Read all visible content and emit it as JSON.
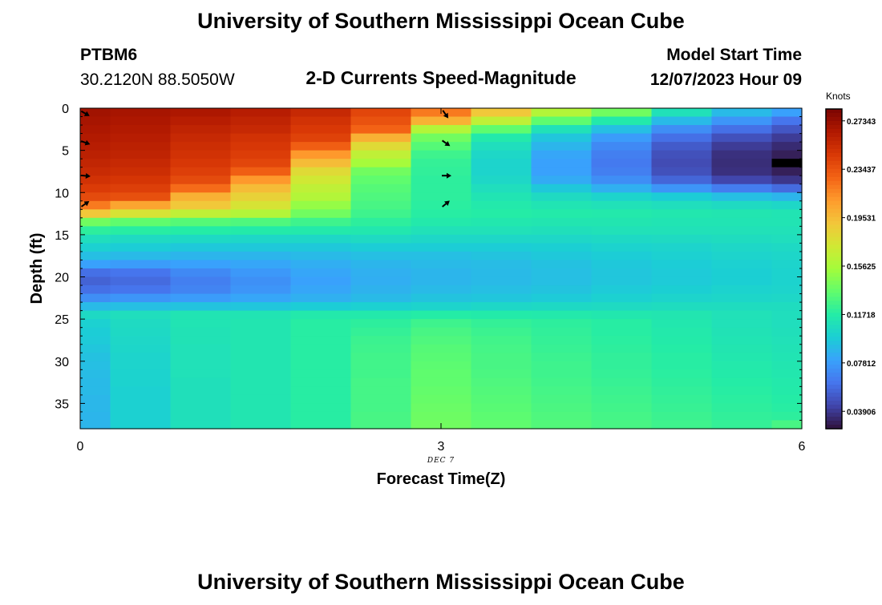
{
  "page": {
    "title": "University of Southern Mississippi Ocean Cube",
    "second_title": "University of Southern Mississippi Ocean Cube"
  },
  "header": {
    "station": "PTBM6",
    "coords": "30.2120N  88.5050W",
    "plot_title": "2-D Currents Speed-Magnitude",
    "model_start_label": "Model Start Time",
    "model_start_value": "12/07/2023 Hour 09"
  },
  "chart_data": {
    "type": "heatmap",
    "title": "2-D Currents Speed-Magnitude",
    "xlabel": "Forecast Time(Z)",
    "ylabel": "Depth (ft)",
    "date_label": "DEC 7",
    "xlim": [
      0,
      6
    ],
    "ylim": [
      0,
      38
    ],
    "x_ticks": [
      {
        "value": 0,
        "label": "0"
      },
      {
        "value": 3,
        "label": "3"
      },
      {
        "value": 6,
        "label": "6"
      }
    ],
    "y_ticks": [
      {
        "value": 0,
        "label": "0"
      },
      {
        "value": 5,
        "label": "5"
      },
      {
        "value": 10,
        "label": "10"
      },
      {
        "value": 15,
        "label": "15"
      },
      {
        "value": 20,
        "label": "20"
      },
      {
        "value": 25,
        "label": "25"
      },
      {
        "value": 30,
        "label": "30"
      },
      {
        "value": 35,
        "label": "35"
      }
    ],
    "x_edges": [
      0,
      0.25,
      0.75,
      1.25,
      1.75,
      2.25,
      2.75,
      3.25,
      3.75,
      4.25,
      4.75,
      5.25,
      5.75,
      6
    ],
    "depths": [
      0.5,
      1.5,
      2.5,
      3.5,
      4.5,
      5.5,
      6.5,
      7.5,
      8.5,
      9.5,
      10.5,
      11.5,
      12.5,
      13.5,
      14.5,
      15.5,
      16.5,
      17.5,
      18.5,
      19.5,
      20.5,
      21.5,
      22.5,
      23.5,
      24.5,
      25.5,
      26.5,
      27.5,
      28.5,
      29.5,
      30.5,
      31.5,
      32.5,
      33.5,
      34.5,
      35.5,
      36.5,
      37.5
    ],
    "speed_knots_by_time": [
      [
        0.27,
        0.268,
        0.266,
        0.264,
        0.262,
        0.26,
        0.257,
        0.254,
        0.25,
        0.245,
        0.238,
        0.22,
        0.19,
        0.14,
        0.12,
        0.108,
        0.1,
        0.092,
        0.08,
        0.06,
        0.055,
        0.06,
        0.072,
        0.09,
        0.105,
        0.1,
        0.098,
        0.097,
        0.095,
        0.093,
        0.092,
        0.091,
        0.09,
        0.09,
        0.089,
        0.089,
        0.088,
        0.088
      ],
      [
        0.268,
        0.266,
        0.264,
        0.262,
        0.26,
        0.258,
        0.255,
        0.252,
        0.248,
        0.243,
        0.236,
        0.205,
        0.175,
        0.135,
        0.118,
        0.106,
        0.098,
        0.09,
        0.078,
        0.062,
        0.058,
        0.062,
        0.075,
        0.092,
        0.108,
        0.106,
        0.105,
        0.104,
        0.103,
        0.102,
        0.102,
        0.101,
        0.101,
        0.1,
        0.1,
        0.1,
        0.1,
        0.1
      ],
      [
        0.266,
        0.262,
        0.258,
        0.255,
        0.252,
        0.25,
        0.247,
        0.243,
        0.238,
        0.225,
        0.2,
        0.19,
        0.165,
        0.132,
        0.117,
        0.105,
        0.096,
        0.088,
        0.08,
        0.07,
        0.066,
        0.068,
        0.078,
        0.094,
        0.112,
        0.112,
        0.111,
        0.111,
        0.11,
        0.11,
        0.11,
        0.11,
        0.109,
        0.109,
        0.109,
        0.109,
        0.109,
        0.109
      ],
      [
        0.262,
        0.258,
        0.255,
        0.25,
        0.247,
        0.244,
        0.24,
        0.23,
        0.21,
        0.195,
        0.185,
        0.175,
        0.16,
        0.13,
        0.116,
        0.104,
        0.096,
        0.088,
        0.082,
        0.076,
        0.073,
        0.075,
        0.082,
        0.095,
        0.112,
        0.113,
        0.113,
        0.113,
        0.113,
        0.113,
        0.113,
        0.113,
        0.113,
        0.113,
        0.113,
        0.113,
        0.113,
        0.113
      ],
      [
        0.255,
        0.25,
        0.246,
        0.242,
        0.23,
        0.21,
        0.195,
        0.18,
        0.172,
        0.165,
        0.16,
        0.15,
        0.14,
        0.125,
        0.115,
        0.104,
        0.096,
        0.09,
        0.085,
        0.082,
        0.08,
        0.082,
        0.086,
        0.098,
        0.115,
        0.118,
        0.118,
        0.118,
        0.118,
        0.118,
        0.118,
        0.118,
        0.118,
        0.118,
        0.118,
        0.118,
        0.118,
        0.118
      ],
      [
        0.24,
        0.235,
        0.228,
        0.2,
        0.18,
        0.165,
        0.155,
        0.14,
        0.135,
        0.132,
        0.13,
        0.128,
        0.125,
        0.12,
        0.114,
        0.106,
        0.098,
        0.092,
        0.088,
        0.086,
        0.085,
        0.087,
        0.09,
        0.1,
        0.115,
        0.12,
        0.122,
        0.124,
        0.125,
        0.126,
        0.126,
        0.126,
        0.127,
        0.127,
        0.127,
        0.127,
        0.128,
        0.128
      ],
      [
        0.22,
        0.2,
        0.16,
        0.14,
        0.132,
        0.125,
        0.122,
        0.121,
        0.12,
        0.12,
        0.12,
        0.119,
        0.118,
        0.115,
        0.11,
        0.104,
        0.098,
        0.092,
        0.09,
        0.088,
        0.088,
        0.09,
        0.094,
        0.102,
        0.117,
        0.125,
        0.128,
        0.13,
        0.132,
        0.133,
        0.134,
        0.135,
        0.135,
        0.136,
        0.137,
        0.138,
        0.139,
        0.14
      ],
      [
        0.19,
        0.165,
        0.135,
        0.115,
        0.108,
        0.104,
        0.102,
        0.102,
        0.104,
        0.108,
        0.112,
        0.115,
        0.117,
        0.114,
        0.11,
        0.104,
        0.098,
        0.094,
        0.091,
        0.09,
        0.09,
        0.092,
        0.095,
        0.104,
        0.116,
        0.122,
        0.124,
        0.126,
        0.127,
        0.128,
        0.128,
        0.129,
        0.13,
        0.131,
        0.132,
        0.133,
        0.134,
        0.135
      ],
      [
        0.16,
        0.135,
        0.11,
        0.095,
        0.088,
        0.082,
        0.08,
        0.08,
        0.084,
        0.096,
        0.106,
        0.112,
        0.116,
        0.113,
        0.109,
        0.104,
        0.099,
        0.096,
        0.093,
        0.092,
        0.092,
        0.094,
        0.097,
        0.105,
        0.115,
        0.12,
        0.121,
        0.122,
        0.123,
        0.124,
        0.125,
        0.125,
        0.126,
        0.127,
        0.128,
        0.129,
        0.13,
        0.131
      ],
      [
        0.14,
        0.115,
        0.092,
        0.078,
        0.07,
        0.066,
        0.064,
        0.066,
        0.072,
        0.086,
        0.102,
        0.11,
        0.115,
        0.113,
        0.11,
        0.105,
        0.101,
        0.098,
        0.096,
        0.095,
        0.095,
        0.097,
        0.1,
        0.106,
        0.114,
        0.118,
        0.118,
        0.119,
        0.12,
        0.121,
        0.121,
        0.122,
        0.123,
        0.124,
        0.125,
        0.126,
        0.127,
        0.128
      ],
      [
        0.11,
        0.09,
        0.072,
        0.06,
        0.052,
        0.048,
        0.046,
        0.048,
        0.056,
        0.075,
        0.098,
        0.108,
        0.114,
        0.112,
        0.11,
        0.106,
        0.102,
        0.1,
        0.098,
        0.097,
        0.097,
        0.099,
        0.102,
        0.107,
        0.113,
        0.114,
        0.115,
        0.116,
        0.117,
        0.118,
        0.118,
        0.119,
        0.12,
        0.121,
        0.122,
        0.123,
        0.124,
        0.125
      ],
      [
        0.09,
        0.075,
        0.06,
        0.048,
        0.04,
        0.036,
        0.035,
        0.036,
        0.044,
        0.065,
        0.092,
        0.106,
        0.113,
        0.112,
        0.11,
        0.107,
        0.104,
        0.102,
        0.1,
        0.099,
        0.099,
        0.101,
        0.103,
        0.107,
        0.11,
        0.11,
        0.111,
        0.112,
        0.113,
        0.114,
        0.115,
        0.116,
        0.117,
        0.118,
        0.119,
        0.12,
        0.121,
        0.122
      ],
      [
        0.08,
        0.062,
        0.05,
        0.04,
        0.034,
        0.03,
        0.028,
        0.03,
        0.038,
        0.058,
        0.088,
        0.104,
        0.112,
        0.112,
        0.11,
        0.108,
        0.105,
        0.103,
        0.102,
        0.101,
        0.101,
        0.102,
        0.104,
        0.107,
        0.108,
        0.108,
        0.109,
        0.11,
        0.111,
        0.112,
        0.113,
        0.114,
        0.115,
        0.116,
        0.117,
        0.118,
        0.12,
        0.128
      ]
    ],
    "blank_cell": {
      "time_index": 12,
      "depth_index": 6
    },
    "current_vectors": [
      {
        "x": 0,
        "depth": 0.5,
        "angle_deg": 30
      },
      {
        "x": 0,
        "depth": 4,
        "angle_deg": 20
      },
      {
        "x": 0,
        "depth": 8,
        "angle_deg": 5
      },
      {
        "x": 0,
        "depth": 11.5,
        "angle_deg": -35
      },
      {
        "x": 3,
        "depth": 0.5,
        "angle_deg": 55
      },
      {
        "x": 3,
        "depth": 4,
        "angle_deg": 35
      },
      {
        "x": 3,
        "depth": 8,
        "angle_deg": 0
      },
      {
        "x": 3,
        "depth": 11.5,
        "angle_deg": -40
      }
    ],
    "colorbar": {
      "label": "Knots",
      "min": 0.025,
      "max": 0.283,
      "ticks": [
        {
          "value": 0.27343,
          "label": "0.27343"
        },
        {
          "value": 0.23437,
          "label": "0.23437"
        },
        {
          "value": 0.19531,
          "label": "0.19531"
        },
        {
          "value": 0.15625,
          "label": "0.15625"
        },
        {
          "value": 0.11718,
          "label": "0.11718"
        },
        {
          "value": 0.07812,
          "label": "0.07812"
        },
        {
          "value": 0.03906,
          "label": "0.03906"
        }
      ],
      "palette": [
        "#30123b",
        "#4145ab",
        "#4675ed",
        "#39a2fc",
        "#1bcfd4",
        "#24eca6",
        "#61fc6c",
        "#a4fc3b",
        "#d1e834",
        "#f3c63a",
        "#fe9b2d",
        "#f36315",
        "#d93806",
        "#b11901",
        "#7a0402"
      ]
    }
  }
}
